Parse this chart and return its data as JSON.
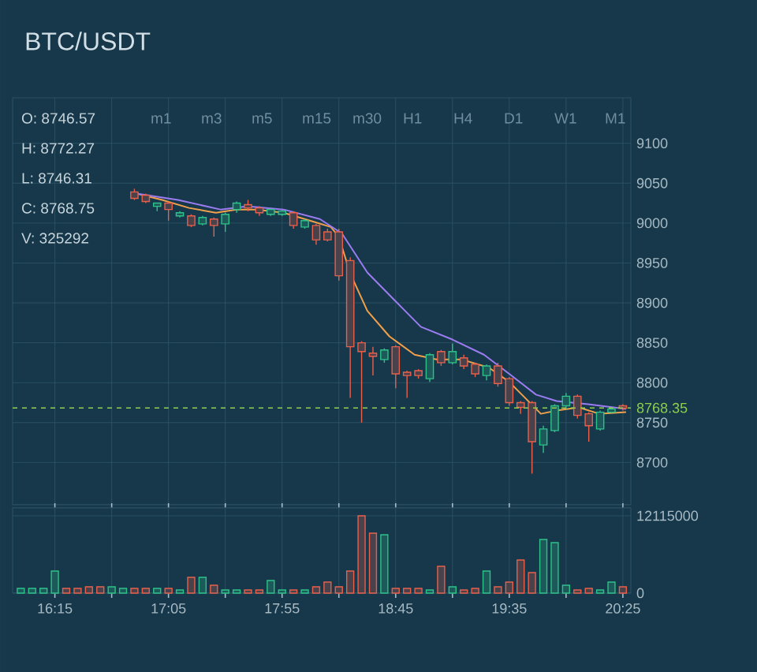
{
  "chart_data": [
    {
      "type": "candlestick",
      "title": "BTC/USDT",
      "annotations": [
        "O: 8746.57",
        "H: 8772.27",
        "L: 8746.31",
        "C: 8768.75",
        "V: 325292",
        "m1",
        "m3",
        "m5",
        "m15",
        "m30",
        "H1",
        "H4",
        "D1",
        "W1",
        "M1"
      ],
      "x": [
        16.8333,
        16.9167,
        17.0,
        17.0833,
        17.1667,
        17.25,
        17.3333,
        17.4167,
        17.5,
        17.5833,
        17.6667,
        17.75,
        17.8333,
        17.9167,
        18.0,
        18.0833,
        18.1667,
        18.25,
        18.3333,
        18.4167,
        18.5,
        18.5833,
        18.6667,
        18.75,
        18.8333,
        18.9167,
        19.0,
        19.0833,
        19.1667,
        19.25,
        19.3333,
        19.4167,
        19.5,
        19.5833,
        19.6667,
        19.75,
        19.8333,
        19.9167,
        20.0,
        20.0833,
        20.1667,
        20.25,
        20.3333,
        20.4167
      ],
      "ohlc": [
        [
          9039,
          9043,
          9029,
          9031
        ],
        [
          9035,
          9037,
          9025,
          9027
        ],
        [
          9021,
          9025,
          9015,
          9025
        ],
        [
          9025,
          9027,
          9003,
          9017
        ],
        [
          9009,
          9015,
          9007,
          9013
        ],
        [
          9009,
          9011,
          8995,
          8997
        ],
        [
          8999,
          9009,
          8997,
          9007
        ],
        [
          9005,
          9007,
          8983,
          8997
        ],
        [
          8999,
          9013,
          8989,
          9011
        ],
        [
          9017,
          9027,
          9013,
          9025
        ],
        [
          9023,
          9029,
          9015,
          9019
        ],
        [
          9019,
          9021,
          9009,
          9013
        ],
        [
          9011,
          9019,
          9009,
          9017
        ],
        [
          9011,
          9017,
          9009,
          9015
        ],
        [
          9013,
          9015,
          8993,
          8997
        ],
        [
          8995,
          9005,
          8993,
          9003
        ],
        [
          8997,
          8999,
          8973,
          8979
        ],
        [
          8989,
          8993,
          8977,
          8979
        ],
        [
          8989,
          8993,
          8928,
          8934
        ],
        [
          8953,
          8957,
          8781,
          8845
        ],
        [
          8850,
          8852,
          8750,
          8839
        ],
        [
          8837,
          8845,
          8809,
          8833
        ],
        [
          8829,
          8843,
          8825,
          8841
        ],
        [
          8845,
          8847,
          8793,
          8811
        ],
        [
          8813,
          8815,
          8781,
          8809
        ],
        [
          8815,
          8817,
          8805,
          8809
        ],
        [
          8805,
          8837,
          8801,
          8835
        ],
        [
          8839,
          8841,
          8821,
          8825
        ],
        [
          8825,
          8849,
          8823,
          8839
        ],
        [
          8831,
          8835,
          8817,
          8821
        ],
        [
          8823,
          8825,
          8807,
          8811
        ],
        [
          8809,
          8823,
          8803,
          8821
        ],
        [
          8821,
          8825,
          8795,
          8799
        ],
        [
          8805,
          8807,
          8771,
          8775
        ],
        [
          8775,
          8777,
          8761,
          8769
        ],
        [
          8775,
          8777,
          8686,
          8726
        ],
        [
          8722,
          8746,
          8712,
          8742
        ],
        [
          8740,
          8773,
          8738,
          8771
        ],
        [
          8771,
          8787,
          8767,
          8783
        ],
        [
          8783,
          8785,
          8755,
          8759
        ],
        [
          8761,
          8763,
          8726,
          8746
        ],
        [
          8742,
          8765,
          8740,
          8763
        ],
        [
          8763,
          8769,
          8761,
          8767
        ],
        [
          8771,
          8773,
          8765,
          8768
        ]
      ],
      "colors": [
        "#e8604c",
        "#e8604c",
        "#2ec28a",
        "#e8604c",
        "#2ec28a",
        "#e8604c",
        "#2ec28a",
        "#e8604c",
        "#2ec28a",
        "#2ec28a",
        "#e8604c",
        "#e8604c",
        "#2ec28a",
        "#2ec28a",
        "#e8604c",
        "#2ec28a",
        "#e8604c",
        "#e8604c",
        "#e8604c",
        "#e8604c",
        "#e8604c",
        "#e8604c",
        "#2ec28a",
        "#e8604c",
        "#e8604c",
        "#e8604c",
        "#2ec28a",
        "#e8604c",
        "#2ec28a",
        "#e8604c",
        "#e8604c",
        "#2ec28a",
        "#e8604c",
        "#e8604c",
        "#e8604c",
        "#e8604c",
        "#2ec28a",
        "#2ec28a",
        "#2ec28a",
        "#e8604c",
        "#e8604c",
        "#2ec28a",
        "#2ec28a",
        "#e8604c"
      ],
      "series": [
        {
          "type": "line",
          "color": "#f0a04b",
          "x": [
            16.852,
            17.037,
            17.234,
            17.431,
            17.581,
            17.731,
            17.928,
            18.16,
            18.275,
            18.333,
            18.414,
            18.542,
            18.704,
            18.889,
            19.051,
            19.236,
            19.433,
            19.583,
            19.699,
            19.815,
            19.931,
            20.093,
            20.243,
            20.44
          ],
          "values": [
            9037,
            9029,
            9019,
            9013,
            9017,
            9017,
            9013,
            9001,
            8995,
            8983,
            8938,
            8890,
            8858,
            8835,
            8829,
            8829,
            8819,
            8801,
            8781,
            8761,
            8765,
            8769,
            8761,
            8763
          ]
        },
        {
          "type": "line",
          "color": "#9b7cf0",
          "x": [
            16.852,
            17.153,
            17.465,
            17.662,
            17.928,
            18.194,
            18.356,
            18.542,
            18.738,
            18.935,
            19.167,
            19.398,
            19.583,
            19.78,
            19.931,
            20.162,
            20.44
          ],
          "values": [
            9037,
            9029,
            9017,
            9021,
            9017,
            9005,
            8987,
            8938,
            8904,
            8870,
            8854,
            8835,
            8811,
            8785,
            8777,
            8773,
            8767
          ]
        }
      ],
      "ref_lines": [
        {
          "axis": "y",
          "value": 8768.35,
          "label": "8768.35",
          "color": "#8fd14f",
          "line_style": "dashed"
        }
      ],
      "xlim": [
        15.94,
        20.475
      ],
      "ylim": [
        8647,
        9157
      ],
      "xticks": [
        {
          "value": 16.25,
          "label": null
        },
        {
          "value": 16.6667,
          "label": null
        },
        {
          "value": 17.0833,
          "label": null
        },
        {
          "value": 17.5,
          "label": null
        },
        {
          "value": 17.9167,
          "label": null
        },
        {
          "value": 18.3333,
          "label": null
        },
        {
          "value": 18.75,
          "label": null
        },
        {
          "value": 19.1667,
          "label": null
        },
        {
          "value": 19.5833,
          "label": null
        },
        {
          "value": 20.0,
          "label": null
        },
        {
          "value": 20.4167,
          "label": null
        }
      ],
      "yticks": [
        8700,
        8750,
        8800,
        8850,
        8900,
        8950,
        9000,
        9050,
        9100
      ],
      "grid": true,
      "tick_labels": "y"
    },
    {
      "type": "bar",
      "x": [
        16.0,
        16.0833,
        16.1667,
        16.25,
        16.3333,
        16.4167,
        16.5,
        16.5833,
        16.6667,
        16.75,
        16.8333,
        16.9167,
        17.0,
        17.0833,
        17.1667,
        17.25,
        17.3333,
        17.4167,
        17.5,
        17.5833,
        17.6667,
        17.75,
        17.8333,
        17.9167,
        18.0,
        18.0833,
        18.1667,
        18.25,
        18.3333,
        18.4167,
        18.5,
        18.5833,
        18.6667,
        18.75,
        18.8333,
        18.9167,
        19.0,
        19.0833,
        19.1667,
        19.25,
        19.3333,
        19.4167,
        19.5,
        19.5833,
        19.6667,
        19.75,
        19.8333,
        19.9167,
        20.0,
        20.0833,
        20.1667,
        20.25,
        20.3333,
        20.4167
      ],
      "values": [
        740000,
        740000,
        740000,
        3460000,
        740000,
        740000,
        990000,
        990000,
        990000,
        740000,
        740000,
        740000,
        740000,
        740000,
        490000,
        2470000,
        2470000,
        1240000,
        490000,
        490000,
        490000,
        490000,
        1980000,
        490000,
        490000,
        490000,
        990000,
        1730000,
        990000,
        3460000,
        12110000,
        9400000,
        9150000,
        740000,
        740000,
        740000,
        490000,
        4200000,
        990000,
        490000,
        740000,
        3460000,
        990000,
        1730000,
        5190000,
        3210000,
        8410000,
        7910000,
        1240000,
        490000,
        740000,
        490000,
        1730000,
        990000
      ],
      "colors": [
        "#2ec28a",
        "#2ec28a",
        "#2ec28a",
        "#2ec28a",
        "#e8604c",
        "#e8604c",
        "#e8604c",
        "#e8604c",
        "#2ec28a",
        "#2ec28a",
        "#e8604c",
        "#e8604c",
        "#2ec28a",
        "#e8604c",
        "#2ec28a",
        "#e8604c",
        "#2ec28a",
        "#e8604c",
        "#2ec28a",
        "#2ec28a",
        "#e8604c",
        "#e8604c",
        "#2ec28a",
        "#2ec28a",
        "#e8604c",
        "#2ec28a",
        "#e8604c",
        "#e8604c",
        "#e8604c",
        "#e8604c",
        "#e8604c",
        "#e8604c",
        "#2ec28a",
        "#e8604c",
        "#e8604c",
        "#e8604c",
        "#2ec28a",
        "#e8604c",
        "#2ec28a",
        "#e8604c",
        "#e8604c",
        "#2ec28a",
        "#e8604c",
        "#e8604c",
        "#e8604c",
        "#e8604c",
        "#2ec28a",
        "#2ec28a",
        "#2ec28a",
        "#e8604c",
        "#e8604c",
        "#2ec28a",
        "#2ec28a",
        "#e8604c"
      ],
      "xlim": [
        15.94,
        20.475
      ],
      "ylim": [
        0,
        13350000
      ],
      "xticks": [
        {
          "value": 16.25,
          "label": "16:15"
        },
        {
          "value": 16.6667,
          "label": null
        },
        {
          "value": 17.0833,
          "label": "17:05"
        },
        {
          "value": 17.5,
          "label": null
        },
        {
          "value": 17.9167,
          "label": "17:55"
        },
        {
          "value": 18.3333,
          "label": null
        },
        {
          "value": 18.75,
          "label": "18:45"
        },
        {
          "value": 19.1667,
          "label": null
        },
        {
          "value": 19.5833,
          "label": "19:35"
        },
        {
          "value": 20.0,
          "label": null
        },
        {
          "value": 20.4167,
          "label": "20:25"
        }
      ],
      "yticks": [
        0,
        12115000
      ],
      "grid": true
    }
  ]
}
